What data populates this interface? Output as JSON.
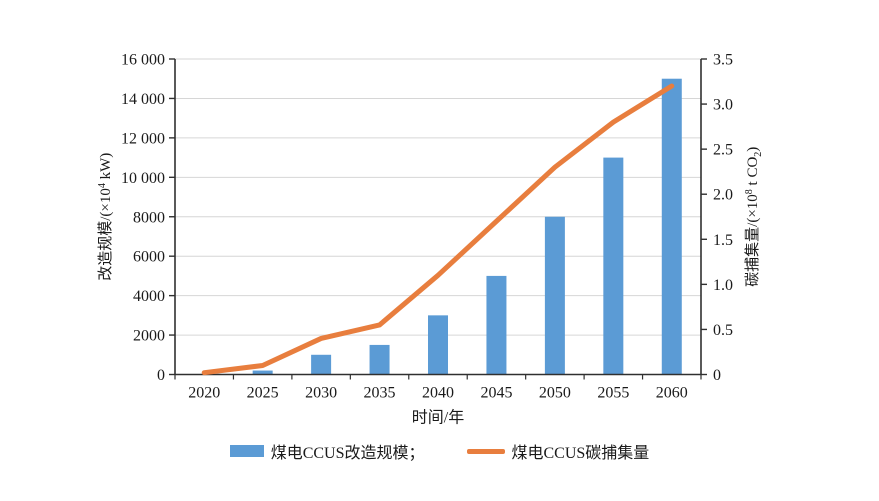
{
  "figure": {
    "background": "#ffffff",
    "grid_color": "#d6d6d6",
    "axis_color": "#303030"
  },
  "legend": {
    "items": [
      {
        "label": "煤电CCUS改造规模；",
        "swatch": "bar",
        "color": "#5B9BD5"
      },
      {
        "label": "煤电CCUS碳捕集量",
        "swatch": "line",
        "color": "#E87E3E"
      }
    ]
  },
  "chart_data": {
    "type": "bar+line combo",
    "categories": [
      "2020",
      "2025",
      "2030",
      "2035",
      "2040",
      "2045",
      "2050",
      "2055",
      "2060"
    ],
    "series": [
      {
        "name": "煤电CCUS改造规模",
        "type": "bar",
        "axis": "left",
        "color": "#5B9BD5",
        "values": [
          0,
          200,
          1000,
          1500,
          3000,
          5000,
          8000,
          11000,
          15000
        ]
      },
      {
        "name": "煤电CCUS碳捕集量",
        "type": "line",
        "axis": "right",
        "color": "#E87E3E",
        "values": [
          0.02,
          0.1,
          0.4,
          0.55,
          1.1,
          1.7,
          2.3,
          2.8,
          3.2
        ]
      }
    ],
    "x_axis": {
      "title": "时间/年",
      "tick_labels": [
        "2020",
        "2025",
        "2030",
        "2035",
        "2040",
        "2045",
        "2050",
        "2055",
        "2060"
      ]
    },
    "left_axis": {
      "title_parts": [
        {
          "t": "改造规模/(×10"
        },
        {
          "t": "4",
          "sup": true
        },
        {
          "t": " kW)"
        }
      ],
      "lim": [
        0,
        16000
      ],
      "tick_values": [
        0,
        2000,
        4000,
        6000,
        8000,
        10000,
        12000,
        14000,
        16000
      ],
      "tick_labels": [
        "0",
        "2000",
        "4000",
        "6000",
        "8000",
        "10 000",
        "12 000",
        "14 000",
        "16 000"
      ]
    },
    "right_axis": {
      "title_parts": [
        {
          "t": "碳捕集量/(×10"
        },
        {
          "t": "8",
          "sup": true
        },
        {
          "t": " t CO"
        },
        {
          "t": "2",
          "sub": true
        },
        {
          "t": ")"
        }
      ],
      "lim": [
        0,
        3.5
      ],
      "tick_values": [
        0,
        0.5,
        1.0,
        1.5,
        2.0,
        2.5,
        3.0,
        3.5
      ],
      "tick_labels": [
        "0",
        "0.5",
        "1.0",
        "1.5",
        "2.0",
        "2.5",
        "3.0",
        "3.5"
      ]
    },
    "grid": true,
    "legend_position": "bottom"
  }
}
